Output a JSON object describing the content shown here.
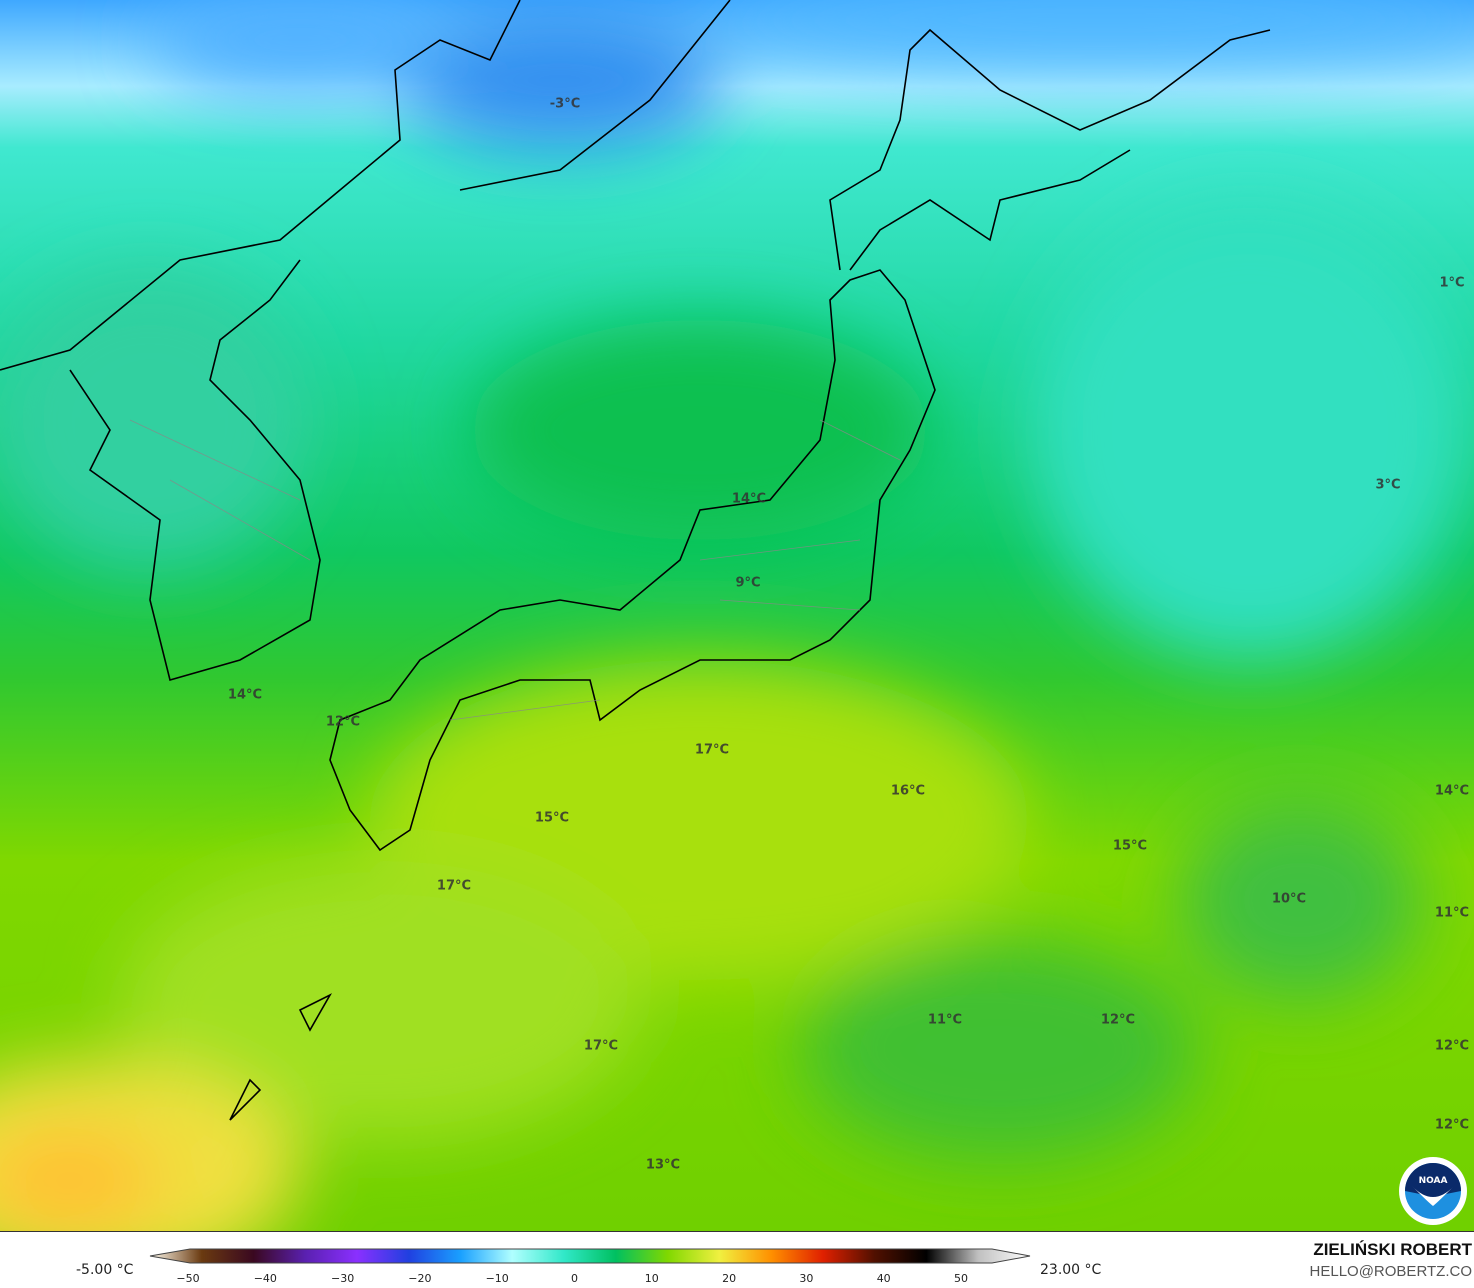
{
  "map": {
    "variable_unit": "°C",
    "labels": [
      "-3°C",
      "1°C",
      "3°C",
      "14°C",
      "9°C",
      "14°C",
      "12°C",
      "17°C",
      "16°C",
      "14°C",
      "15°C",
      "15°C",
      "17°C",
      "10°C",
      "11°C",
      "11°C",
      "12°C",
      "12°C",
      "17°C",
      "12°C",
      "13°C"
    ],
    "logo": "NOAA"
  },
  "legend": {
    "min_label": "-5.00 °C",
    "max_label": "23.00 °C",
    "ticks": [
      "−50",
      "−40",
      "−30",
      "−20",
      "−10",
      "0",
      "10",
      "20",
      "30",
      "40",
      "50"
    ],
    "colors": [
      "#fffbee",
      "#6a3a10",
      "#3a0820",
      "#5a20b0",
      "#8a30ff",
      "#2040e0",
      "#1aa0ff",
      "#b0ffff",
      "#30e8c8",
      "#00c060",
      "#80d800",
      "#f0f040",
      "#ff9000",
      "#e02000",
      "#501000",
      "#000000",
      "#c0c0c0",
      "#ffffff"
    ]
  },
  "credit": {
    "author": "ZIELIŃSKI ROBERT",
    "email": "HELLO@ROBERTZ.CO"
  }
}
